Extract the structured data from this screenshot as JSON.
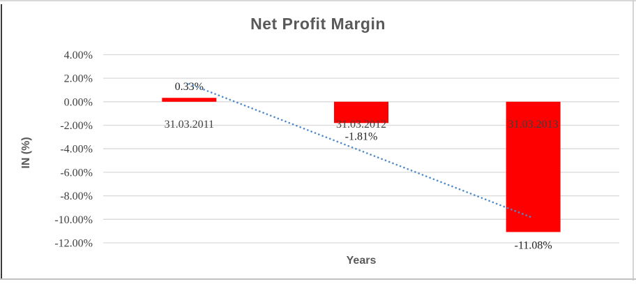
{
  "chart_data": {
    "type": "bar",
    "title": "Net Profit Margin",
    "xlabel": "Years",
    "ylabel": "IN (%)",
    "categories": [
      "31.03.2011",
      "31.03.2012",
      "31.03.2013"
    ],
    "values": [
      0.33,
      -1.81,
      -11.08
    ],
    "data_labels": [
      "0.33%",
      "-1.81%",
      "-11.08%"
    ],
    "value_unit": "percent",
    "ylim": [
      -12,
      4
    ],
    "yticks": [
      4,
      2,
      0,
      -2,
      -4,
      -6,
      -8,
      -10,
      -12
    ],
    "ytick_labels": [
      "4.00%",
      "2.00%",
      "0.00%",
      "-2.00%",
      "-4.00%",
      "-6.00%",
      "-8.00%",
      "-10.00%",
      "-12.00%"
    ],
    "grid": "horizontal",
    "legend": "none",
    "trendline": {
      "type": "linear",
      "style": "dotted",
      "points_pct": [
        1.52,
        -9.89
      ],
      "color": "#4F8BC9"
    },
    "colors": {
      "bar": "#FF0000",
      "title": "#595959",
      "axis_title": "#595959",
      "tick_label": "#3F3F3F",
      "data_label": "#1F1F1F",
      "gridline": "#D9D9D9"
    }
  }
}
